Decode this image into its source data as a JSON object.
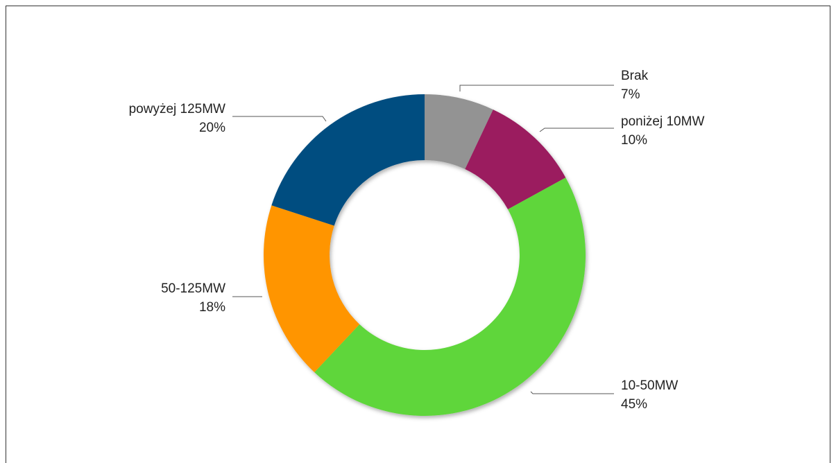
{
  "chart_data": {
    "type": "donut",
    "categories": [
      "Brak",
      "poniżej 10MW",
      "10-50MW",
      "50-125MW",
      "powyżej 125MW"
    ],
    "values": [
      7,
      10,
      45,
      18,
      20
    ],
    "value_labels": [
      "7%",
      "10%",
      "45%",
      "18%",
      "20%"
    ],
    "colors": [
      "#939393",
      "#9b1a5e",
      "#5fd63a",
      "#ff9500",
      "#004d80"
    ]
  }
}
